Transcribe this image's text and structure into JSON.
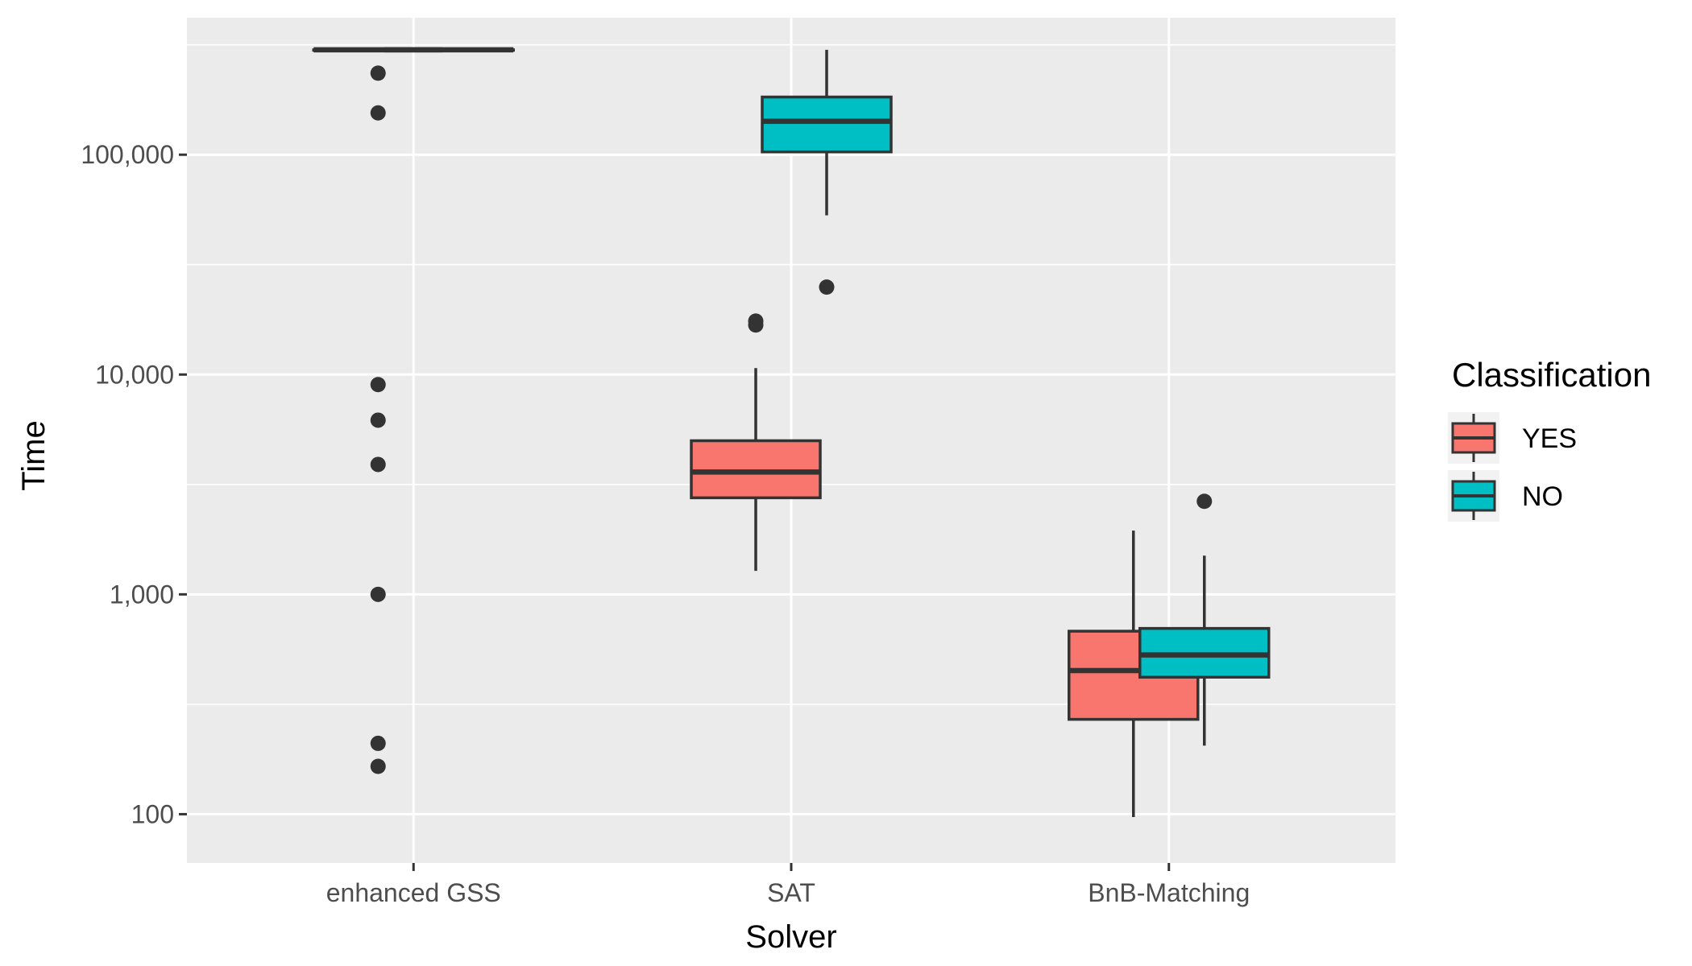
{
  "chart_data": {
    "type": "boxplot",
    "xlabel": "Solver",
    "ylabel": "Time",
    "yscale": "log10",
    "ylim": [
      60,
      420000
    ],
    "yticks": [
      {
        "value": 100,
        "label": "100"
      },
      {
        "value": 1000,
        "label": "1,000"
      },
      {
        "value": 10000,
        "label": "10,000"
      },
      {
        "value": 100000,
        "label": "100,000"
      }
    ],
    "categories": [
      "enhanced GSS",
      "SAT",
      "BnB-Matching"
    ],
    "legend": {
      "title": "Classification",
      "position": "right",
      "entries": [
        {
          "name": "YES",
          "color": "#F8766D"
        },
        {
          "name": "NO",
          "color": "#00BFC4"
        }
      ]
    },
    "series": [
      {
        "name": "YES",
        "color": "#F8766D",
        "boxes": [
          {
            "category": "enhanced GSS",
            "whisker_low": 300000,
            "q1": 300000,
            "median": 300000,
            "q3": 300000,
            "whisker_high": 300000,
            "outliers": [
              235000,
              155000,
              9000,
              6200,
              3900,
              1000,
              210,
              165
            ]
          },
          {
            "category": "SAT",
            "whisker_low": 1280,
            "q1": 2750,
            "median": 3600,
            "q3": 5000,
            "whisker_high": 10700,
            "outliers": [
              17500,
              16800
            ]
          },
          {
            "category": "BnB-Matching",
            "whisker_low": 97,
            "q1": 270,
            "median": 450,
            "q3": 680,
            "whisker_high": 1950,
            "outliers": []
          }
        ]
      },
      {
        "name": "NO",
        "color": "#00BFC4",
        "boxes": [
          {
            "category": "enhanced GSS",
            "whisker_low": 300000,
            "q1": 300000,
            "median": 300000,
            "q3": 300000,
            "whisker_high": 300000,
            "outliers": []
          },
          {
            "category": "SAT",
            "whisker_low": 53000,
            "q1": 103000,
            "median": 142000,
            "q3": 183000,
            "whisker_high": 300000,
            "outliers": [
              25000
            ]
          },
          {
            "category": "BnB-Matching",
            "whisker_low": 205,
            "q1": 420,
            "median": 530,
            "q3": 700,
            "whisker_high": 1500,
            "outliers": [
              2650
            ]
          }
        ]
      }
    ]
  }
}
